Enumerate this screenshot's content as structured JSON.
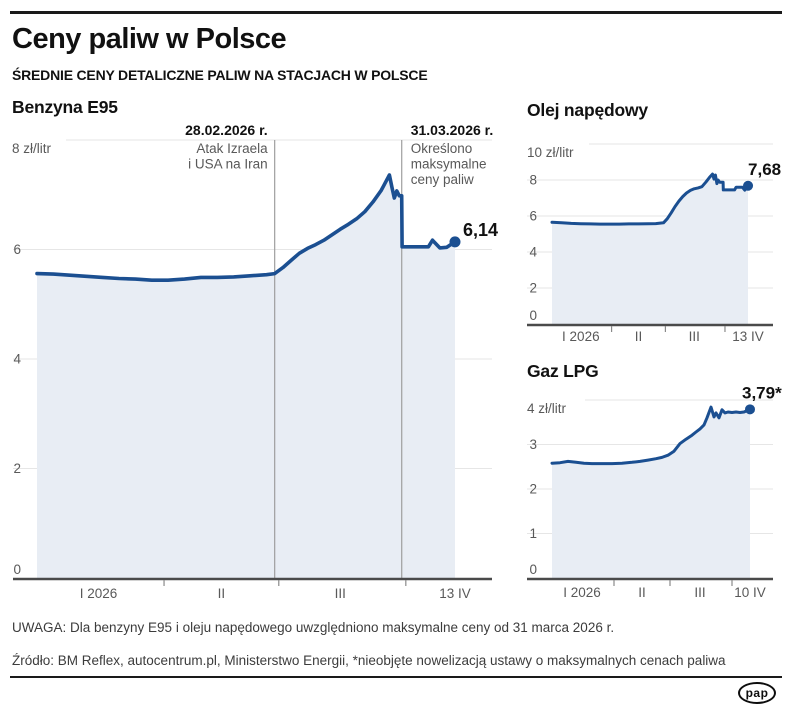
{
  "header": {
    "title": "Ceny paliw w Polsce",
    "subtitle": "ŚREDNIE CENY DETALICZNE PALIW NA STACJACH W POLSCE"
  },
  "footer": {
    "note": "UWAGA: Dla benzyny E95 i oleju napędowego uwzględniono maksymalne ceny od 31 marca 2026 r.",
    "source": "Źródło: BM Reflex, autocentrum.pl, Ministerstwo Energii, *nieobjęte nowelizacją ustawy o maksymalnych cenach paliwa",
    "logo_text": "pap"
  },
  "style": {
    "line_color": "#1b4f91",
    "fill_color": "#e8edf4",
    "grid_color": "#e6e6e6",
    "axis_color": "#4a4a4a",
    "tick_color": "#8a8a8a",
    "event_line_color": "#9e9e9e",
    "muted_text": "#595959",
    "dark_text": "#111111"
  },
  "chart_data": [
    {
      "type": "area",
      "title": "Benzyna E95",
      "unit_label": "8 zł/litr",
      "ylabel": "zł/litr",
      "y_max": 8,
      "y_ticks": [
        8,
        6,
        4,
        2,
        0
      ],
      "x_month_tick_days": [
        31,
        59,
        90
      ],
      "x_labels": [
        {
          "day": 15,
          "text": "I 2026"
        },
        {
          "day": 45,
          "text": "II"
        },
        {
          "day": 74,
          "text": "III"
        },
        {
          "day": 102,
          "text": "13 IV"
        }
      ],
      "end_value_label": "6,14",
      "annotations": [
        {
          "day": 58,
          "side": "left",
          "date": "28.02.2026 r.",
          "lines": [
            "Atak Izraela",
            "i USA na Iran"
          ]
        },
        {
          "day": 89,
          "side": "right",
          "date": "31.03.2026 r.",
          "lines": [
            "Określono",
            "maksymalne",
            "ceny paliw"
          ]
        }
      ],
      "points": [
        [
          0,
          5.56
        ],
        [
          4,
          5.55
        ],
        [
          8,
          5.53
        ],
        [
          12,
          5.51
        ],
        [
          16,
          5.49
        ],
        [
          20,
          5.47
        ],
        [
          24,
          5.46
        ],
        [
          28,
          5.44
        ],
        [
          32,
          5.44
        ],
        [
          36,
          5.46
        ],
        [
          40,
          5.49
        ],
        [
          44,
          5.49
        ],
        [
          48,
          5.5
        ],
        [
          52,
          5.52
        ],
        [
          56,
          5.54
        ],
        [
          58,
          5.56
        ],
        [
          60,
          5.67
        ],
        [
          62,
          5.8
        ],
        [
          64,
          5.93
        ],
        [
          66,
          6.02
        ],
        [
          68,
          6.09
        ],
        [
          70,
          6.17
        ],
        [
          72,
          6.27
        ],
        [
          74,
          6.37
        ],
        [
          76,
          6.46
        ],
        [
          78,
          6.56
        ],
        [
          80,
          6.69
        ],
        [
          82,
          6.87
        ],
        [
          84,
          7.08
        ],
        [
          85,
          7.22
        ],
        [
          86,
          7.36
        ],
        [
          86.6,
          7.14
        ],
        [
          87.2,
          6.94
        ],
        [
          87.8,
          7.07
        ],
        [
          88.4,
          6.98
        ],
        [
          89,
          6.98
        ],
        [
          89.1,
          6.05
        ],
        [
          93,
          6.05
        ],
        [
          95.5,
          6.05
        ],
        [
          96.5,
          6.17
        ],
        [
          98.3,
          6.03
        ],
        [
          100,
          6.04
        ],
        [
          102,
          6.14
        ]
      ]
    },
    {
      "type": "area",
      "title": "Olej napędowy",
      "unit_label": "10 zł/litr",
      "ylabel": "zł/litr",
      "y_max": 10,
      "y_ticks": [
        10,
        8,
        6,
        4,
        2,
        0
      ],
      "x_month_tick_days": [
        31,
        59,
        90
      ],
      "x_labels": [
        {
          "day": 15,
          "text": "I 2026"
        },
        {
          "day": 45,
          "text": "II"
        },
        {
          "day": 74,
          "text": "III"
        },
        {
          "day": 102,
          "text": "13 IV"
        }
      ],
      "end_value_label": "7,68",
      "annotations": [],
      "points": [
        [
          0,
          5.65
        ],
        [
          5,
          5.62
        ],
        [
          10,
          5.59
        ],
        [
          15,
          5.57
        ],
        [
          20,
          5.56
        ],
        [
          25,
          5.55
        ],
        [
          30,
          5.55
        ],
        [
          35,
          5.55
        ],
        [
          40,
          5.56
        ],
        [
          45,
          5.56
        ],
        [
          50,
          5.57
        ],
        [
          54,
          5.58
        ],
        [
          58,
          5.62
        ],
        [
          60,
          5.85
        ],
        [
          62,
          6.18
        ],
        [
          64,
          6.52
        ],
        [
          66,
          6.83
        ],
        [
          68,
          7.08
        ],
        [
          70,
          7.28
        ],
        [
          72,
          7.42
        ],
        [
          74,
          7.51
        ],
        [
          76,
          7.56
        ],
        [
          78,
          7.63
        ],
        [
          80,
          7.88
        ],
        [
          82,
          8.15
        ],
        [
          83.5,
          8.33
        ],
        [
          84.3,
          8.05
        ],
        [
          85,
          8.28
        ],
        [
          85.8,
          7.8
        ],
        [
          86.4,
          8.0
        ],
        [
          87.2,
          7.88
        ],
        [
          88.2,
          7.88
        ],
        [
          89,
          7.88
        ],
        [
          89.1,
          7.45
        ],
        [
          92,
          7.45
        ],
        [
          95,
          7.45
        ],
        [
          95.8,
          7.6
        ],
        [
          99,
          7.6
        ],
        [
          100.3,
          7.44
        ],
        [
          102,
          7.68
        ]
      ]
    },
    {
      "type": "area",
      "title": "Gaz LPG",
      "unit_label": "4 zł/litr",
      "ylabel": "zł/litr",
      "y_max": 4,
      "y_ticks": [
        4,
        3,
        2,
        1,
        0
      ],
      "x_month_tick_days": [
        31,
        59,
        90
      ],
      "x_labels": [
        {
          "day": 15,
          "text": "I 2026"
        },
        {
          "day": 45,
          "text": "II"
        },
        {
          "day": 74,
          "text": "III"
        },
        {
          "day": 99,
          "text": "10 IV"
        }
      ],
      "end_value_label": "3,79*",
      "annotations": [],
      "points": [
        [
          0,
          2.58
        ],
        [
          4,
          2.59
        ],
        [
          8,
          2.62
        ],
        [
          12,
          2.6
        ],
        [
          16,
          2.58
        ],
        [
          20,
          2.57
        ],
        [
          25,
          2.57
        ],
        [
          30,
          2.57
        ],
        [
          35,
          2.58
        ],
        [
          40,
          2.6
        ],
        [
          44,
          2.62
        ],
        [
          48,
          2.65
        ],
        [
          52,
          2.68
        ],
        [
          55,
          2.71
        ],
        [
          58,
          2.76
        ],
        [
          61,
          2.85
        ],
        [
          64,
          3.02
        ],
        [
          67,
          3.12
        ],
        [
          70,
          3.21
        ],
        [
          72,
          3.28
        ],
        [
          74,
          3.35
        ],
        [
          76,
          3.44
        ],
        [
          77.5,
          3.6
        ],
        [
          79.5,
          3.84
        ],
        [
          81,
          3.62
        ],
        [
          82,
          3.71
        ],
        [
          83.5,
          3.6
        ],
        [
          85,
          3.78
        ],
        [
          86.5,
          3.71
        ],
        [
          88,
          3.73
        ],
        [
          90,
          3.72
        ],
        [
          92,
          3.73
        ],
        [
          94,
          3.72
        ],
        [
          96,
          3.73
        ],
        [
          99,
          3.79
        ]
      ]
    }
  ]
}
